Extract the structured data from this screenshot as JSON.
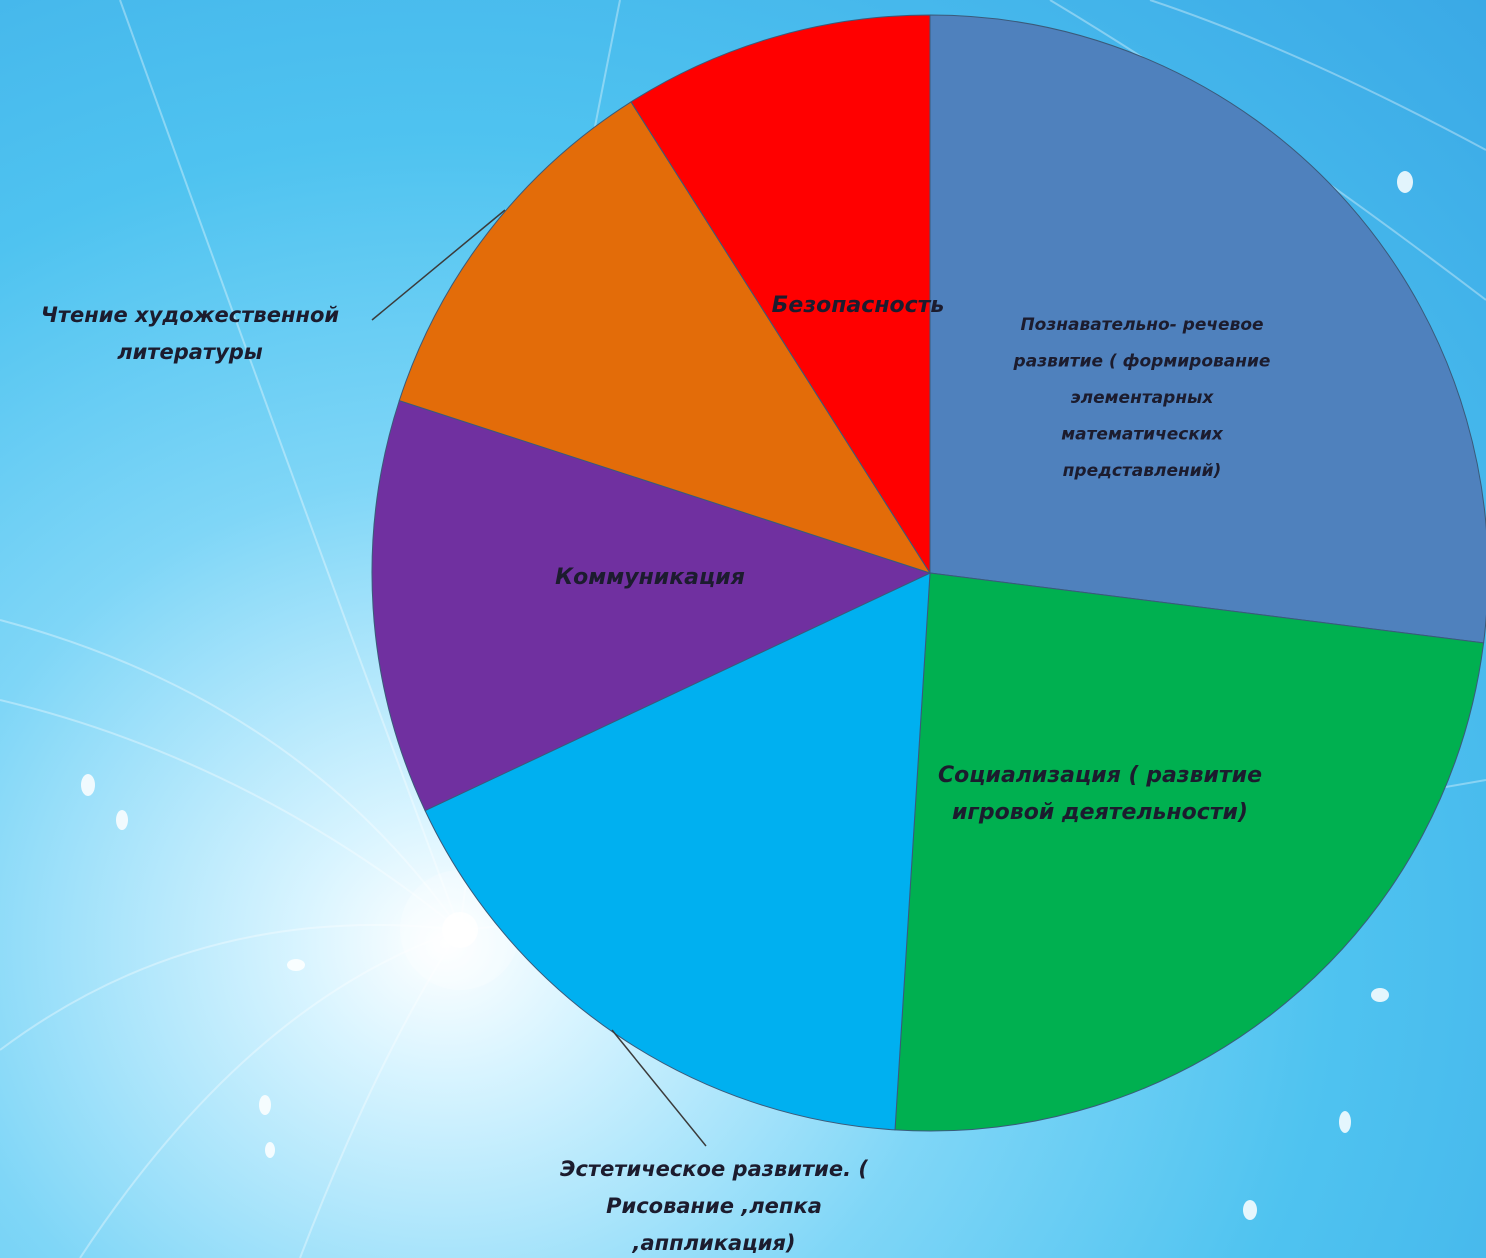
{
  "chart_data": {
    "type": "pie",
    "title": "",
    "start_angle_deg": 0,
    "direction": "clockwise",
    "slices": [
      {
        "label": "Познавательно- речевое развитие ( формирование элементарных математических представлений)",
        "label_lines": [
          "Познавательно- речевое",
          "развитие ( формирование",
          "элементарных",
          "математических",
          "представлений)"
        ],
        "value": 27,
        "color": "#4f81bd"
      },
      {
        "label": "Социализация ( развитие игровой деятельности)",
        "label_lines": [
          "Социализация ( развитие",
          "игровой деятельности)"
        ],
        "value": 24,
        "color": "#00b050"
      },
      {
        "label": "Эстетическое развитие. ( Рисование ,лепка ,аппликация)",
        "label_lines": [
          "Эстетическое развитие. (",
          "Рисование ,лепка",
          ",аппликация)"
        ],
        "value": 17,
        "color": "#00b0f0"
      },
      {
        "label": "Коммуникация",
        "label_lines": [
          "Коммуникация"
        ],
        "value": 12,
        "color": "#7030a0"
      },
      {
        "label": "Чтение художественной литературы",
        "label_lines": [
          "Чтение художественной",
          "литературы"
        ],
        "value": 11,
        "color": "#e36c09"
      },
      {
        "label": "Безопасность",
        "label_lines": [
          "Безопасность"
        ],
        "value": 9,
        "color": "#ff0000"
      }
    ]
  }
}
